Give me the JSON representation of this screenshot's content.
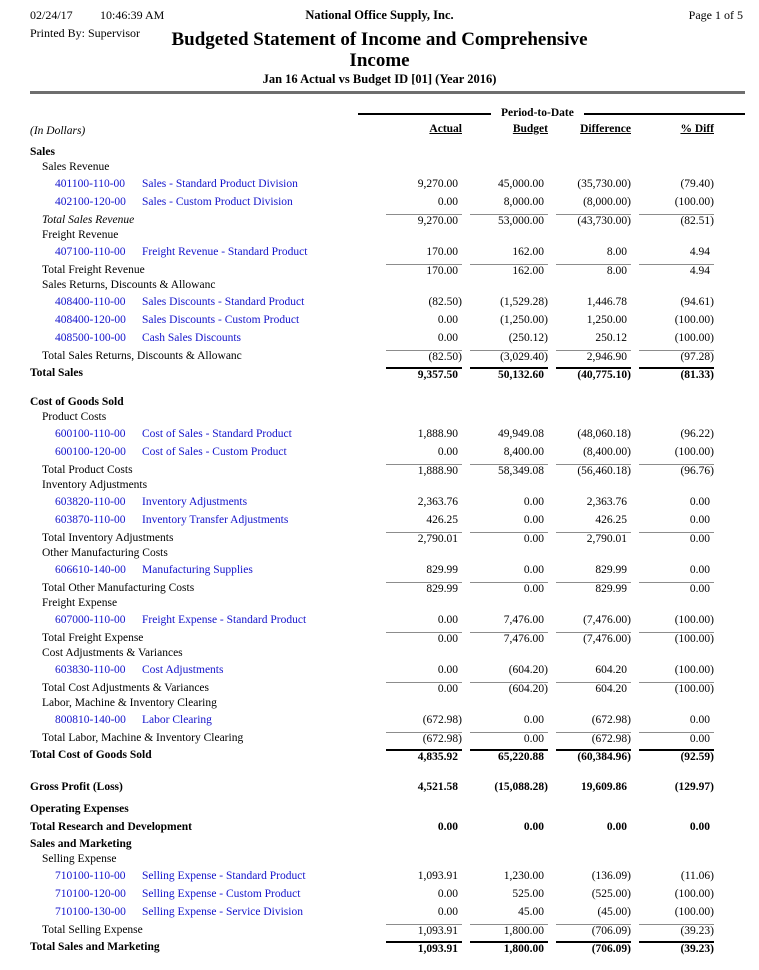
{
  "header": {
    "date": "02/24/17",
    "time": "10:46:39 AM",
    "company": "National Office Supply, Inc.",
    "page_label": "Page 1 of 5",
    "printed_by": "Printed By: Supervisor",
    "title": "Budgeted Statement of Income and Comprehensive Income",
    "subtitle": "Jan 16 Actual vs Budget ID [01] (Year 2016)"
  },
  "table": {
    "period_header": "Period-to-Date",
    "units_label": "(In Dollars)",
    "columns": [
      "Actual",
      "Budget",
      "Difference",
      "% Diff"
    ],
    "rows": [
      {
        "type": "section",
        "label": "Sales"
      },
      {
        "type": "group",
        "label": "Sales Revenue"
      },
      {
        "type": "account",
        "account": "401100-110-00",
        "desc": "Sales - Standard Product Division",
        "values": [
          "9,270.00",
          "45,000.00",
          "(35,730.00)",
          "(79.40)"
        ]
      },
      {
        "type": "account",
        "account": "402100-120-00",
        "desc": "Sales - Custom Product Division",
        "values": [
          "0.00",
          "8,000.00",
          "(8,000.00)",
          "(100.00)"
        ]
      },
      {
        "type": "total",
        "label": "Total Sales Revenue",
        "italic": true,
        "rule": "thin",
        "values": [
          "9,270.00",
          "53,000.00",
          "(43,730.00)",
          "(82.51)"
        ]
      },
      {
        "type": "group",
        "label": "Freight Revenue"
      },
      {
        "type": "account",
        "account": "407100-110-00",
        "desc": "Freight Revenue - Standard Product",
        "values": [
          "170.00",
          "162.00",
          "8.00",
          "4.94"
        ]
      },
      {
        "type": "total",
        "label": "Total Freight Revenue",
        "rule": "thin",
        "values": [
          "170.00",
          "162.00",
          "8.00",
          "4.94"
        ]
      },
      {
        "type": "group",
        "label": "Sales Returns, Discounts & Allowanc"
      },
      {
        "type": "account",
        "account": "408400-110-00",
        "desc": "Sales Discounts - Standard Product",
        "values": [
          "(82.50)",
          "(1,529.28)",
          "1,446.78",
          "(94.61)"
        ]
      },
      {
        "type": "account",
        "account": "408400-120-00",
        "desc": "Sales Discounts - Custom Product",
        "values": [
          "0.00",
          "(1,250.00)",
          "1,250.00",
          "(100.00)"
        ]
      },
      {
        "type": "account",
        "account": "408500-100-00",
        "desc": "Cash Sales Discounts",
        "values": [
          "0.00",
          "(250.12)",
          "250.12",
          "(100.00)"
        ]
      },
      {
        "type": "total",
        "label": "Total Sales Returns, Discounts & Allowanc",
        "rule": "thin",
        "values": [
          "(82.50)",
          "(3,029.40)",
          "2,946.90",
          "(97.28)"
        ]
      },
      {
        "type": "stotal",
        "label": "Total Sales",
        "rule": "thick",
        "values": [
          "9,357.50",
          "50,132.60",
          "(40,775.10)",
          "(81.33)"
        ]
      },
      {
        "type": "spacer"
      },
      {
        "type": "section",
        "label": "Cost of Goods Sold"
      },
      {
        "type": "group",
        "label": "Product Costs"
      },
      {
        "type": "account",
        "account": "600100-110-00",
        "desc": "Cost of Sales - Standard Product",
        "values": [
          "1,888.90",
          "49,949.08",
          "(48,060.18)",
          "(96.22)"
        ]
      },
      {
        "type": "account",
        "account": "600100-120-00",
        "desc": "Cost of Sales - Custom Product",
        "values": [
          "0.00",
          "8,400.00",
          "(8,400.00)",
          "(100.00)"
        ]
      },
      {
        "type": "total",
        "label": "Total Product Costs",
        "rule": "thin",
        "values": [
          "1,888.90",
          "58,349.08",
          "(56,460.18)",
          "(96.76)"
        ]
      },
      {
        "type": "group",
        "label": "Inventory Adjustments"
      },
      {
        "type": "account",
        "account": "603820-110-00",
        "desc": "Inventory Adjustments",
        "values": [
          "2,363.76",
          "0.00",
          "2,363.76",
          "0.00"
        ]
      },
      {
        "type": "account",
        "account": "603870-110-00",
        "desc": "Inventory Transfer Adjustments",
        "values": [
          "426.25",
          "0.00",
          "426.25",
          "0.00"
        ]
      },
      {
        "type": "total",
        "label": "Total Inventory Adjustments",
        "rule": "thin",
        "values": [
          "2,790.01",
          "0.00",
          "2,790.01",
          "0.00"
        ]
      },
      {
        "type": "group",
        "label": "Other Manufacturing Costs"
      },
      {
        "type": "account",
        "account": "606610-140-00",
        "desc": "Manufacturing Supplies",
        "values": [
          "829.99",
          "0.00",
          "829.99",
          "0.00"
        ]
      },
      {
        "type": "total",
        "label": "Total Other Manufacturing Costs",
        "rule": "thin",
        "values": [
          "829.99",
          "0.00",
          "829.99",
          "0.00"
        ]
      },
      {
        "type": "group",
        "label": "Freight Expense"
      },
      {
        "type": "account",
        "account": "607000-110-00",
        "desc": "Freight Expense - Standard Product",
        "values": [
          "0.00",
          "7,476.00",
          "(7,476.00)",
          "(100.00)"
        ]
      },
      {
        "type": "total",
        "label": "Total Freight Expense",
        "rule": "thin",
        "values": [
          "0.00",
          "7,476.00",
          "(7,476.00)",
          "(100.00)"
        ]
      },
      {
        "type": "group",
        "label": "Cost Adjustments & Variances"
      },
      {
        "type": "account",
        "account": "603830-110-00",
        "desc": "Cost Adjustments",
        "values": [
          "0.00",
          "(604.20)",
          "604.20",
          "(100.00)"
        ]
      },
      {
        "type": "total",
        "label": "Total Cost Adjustments & Variances",
        "rule": "thin",
        "values": [
          "0.00",
          "(604.20)",
          "604.20",
          "(100.00)"
        ]
      },
      {
        "type": "group",
        "label": "Labor, Machine & Inventory Clearing"
      },
      {
        "type": "account",
        "account": "800810-140-00",
        "desc": "Labor Clearing",
        "values": [
          "(672.98)",
          "0.00",
          "(672.98)",
          "0.00"
        ]
      },
      {
        "type": "total",
        "label": "Total Labor, Machine & Inventory Clearing",
        "rule": "thin",
        "values": [
          "(672.98)",
          "0.00",
          "(672.98)",
          "0.00"
        ]
      },
      {
        "type": "stotal",
        "label": "Total Cost of Goods Sold",
        "rule": "thick",
        "values": [
          "4,835.92",
          "65,220.88",
          "(60,384.96)",
          "(92.59)"
        ]
      },
      {
        "type": "spacer"
      },
      {
        "type": "bold",
        "label": "Gross Profit (Loss)",
        "values": [
          "4,521.58",
          "(15,088.28)",
          "19,609.86",
          "(129.97)"
        ]
      },
      {
        "type": "spacer",
        "size": "sm"
      },
      {
        "type": "section",
        "label": "Operating Expenses"
      },
      {
        "type": "bold",
        "label": "Total Research and Development",
        "values": [
          "0.00",
          "0.00",
          "0.00",
          "0.00"
        ]
      },
      {
        "type": "section",
        "label": "Sales and Marketing"
      },
      {
        "type": "group",
        "label": "Selling Expense"
      },
      {
        "type": "account",
        "account": "710100-110-00",
        "desc": "Selling Expense - Standard Product",
        "values": [
          "1,093.91",
          "1,230.00",
          "(136.09)",
          "(11.06)"
        ]
      },
      {
        "type": "account",
        "account": "710100-120-00",
        "desc": "Selling Expense - Custom Product",
        "values": [
          "0.00",
          "525.00",
          "(525.00)",
          "(100.00)"
        ]
      },
      {
        "type": "account",
        "account": "710100-130-00",
        "desc": "Selling Expense - Service Division",
        "values": [
          "0.00",
          "45.00",
          "(45.00)",
          "(100.00)"
        ]
      },
      {
        "type": "total",
        "label": "Total Selling Expense",
        "rule": "thin",
        "values": [
          "1,093.91",
          "1,800.00",
          "(706.09)",
          "(39.23)"
        ]
      },
      {
        "type": "stotal",
        "label": "Total Sales and Marketing",
        "rule": "thick",
        "values": [
          "1,093.91",
          "1,800.00",
          "(706.09)",
          "(39.23)"
        ]
      }
    ]
  },
  "colors": {
    "link_blue": "#1414cc",
    "rule_thin": "#8c8c8c",
    "rule_thick": "#000000",
    "header_rule": "#6e6e6e"
  }
}
